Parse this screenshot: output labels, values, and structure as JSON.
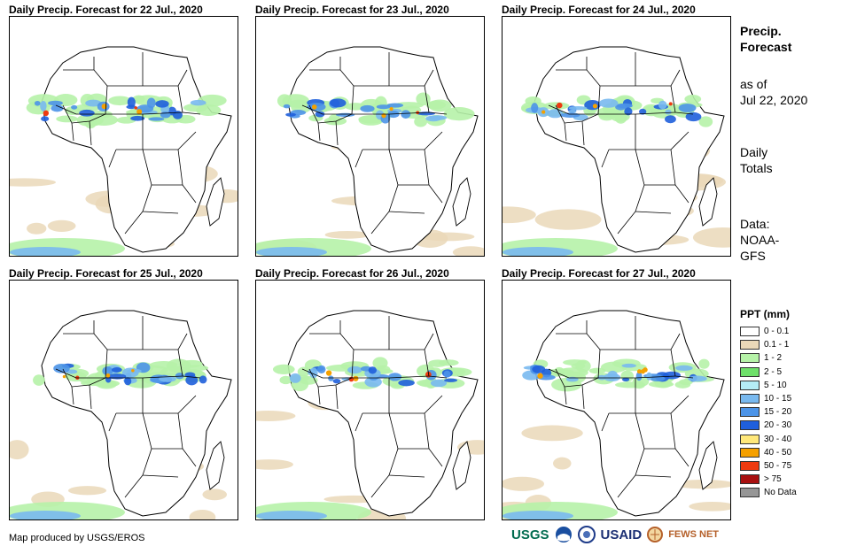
{
  "panels": [
    {
      "title": "Daily Precip. Forecast for 22 Jul., 2020"
    },
    {
      "title": "Daily Precip. Forecast for 23 Jul., 2020"
    },
    {
      "title": "Daily Precip. Forecast for 24 Jul., 2020"
    },
    {
      "title": "Daily Precip. Forecast for 25 Jul., 2020"
    },
    {
      "title": "Daily Precip. Forecast for 26 Jul., 2020"
    },
    {
      "title": "Daily Precip. Forecast for 27 Jul., 2020"
    }
  ],
  "sidebar": {
    "title_line1": "Precip.",
    "title_line2": "Forecast",
    "asof_line1": "as of",
    "asof_line2": "Jul 22, 2020",
    "daily_line1": "Daily",
    "daily_line2": "Totals",
    "data_line1": "Data:",
    "data_line2": "NOAA-",
    "data_line3": "GFS"
  },
  "legend": {
    "title": "PPT (mm)",
    "items": [
      {
        "label": "0 - 0.1",
        "color": "#ffffff"
      },
      {
        "label": "0.1 - 1",
        "color": "#ead8b8"
      },
      {
        "label": "1 - 2",
        "color": "#b6f2a8"
      },
      {
        "label": "2 - 5",
        "color": "#6ee06a"
      },
      {
        "label": "5 - 10",
        "color": "#b4ecf6"
      },
      {
        "label": "10 - 15",
        "color": "#79b9ef"
      },
      {
        "label": "15 - 20",
        "color": "#4c94e8"
      },
      {
        "label": "20 - 30",
        "color": "#1f5fdc"
      },
      {
        "label": "30 - 40",
        "color": "#ffe87a"
      },
      {
        "label": "40 - 50",
        "color": "#f5a000"
      },
      {
        "label": "50 - 75",
        "color": "#ee3a10"
      },
      {
        "label": "> 75",
        "color": "#a81010"
      },
      {
        "label": "No Data",
        "color": "#969696"
      }
    ]
  },
  "footer": {
    "credit": "Map produced by USGS/EROS",
    "logo_usgs": "USGS",
    "logo_usaid": "USAID",
    "logo_fewsnet": "FEWS NET"
  }
}
